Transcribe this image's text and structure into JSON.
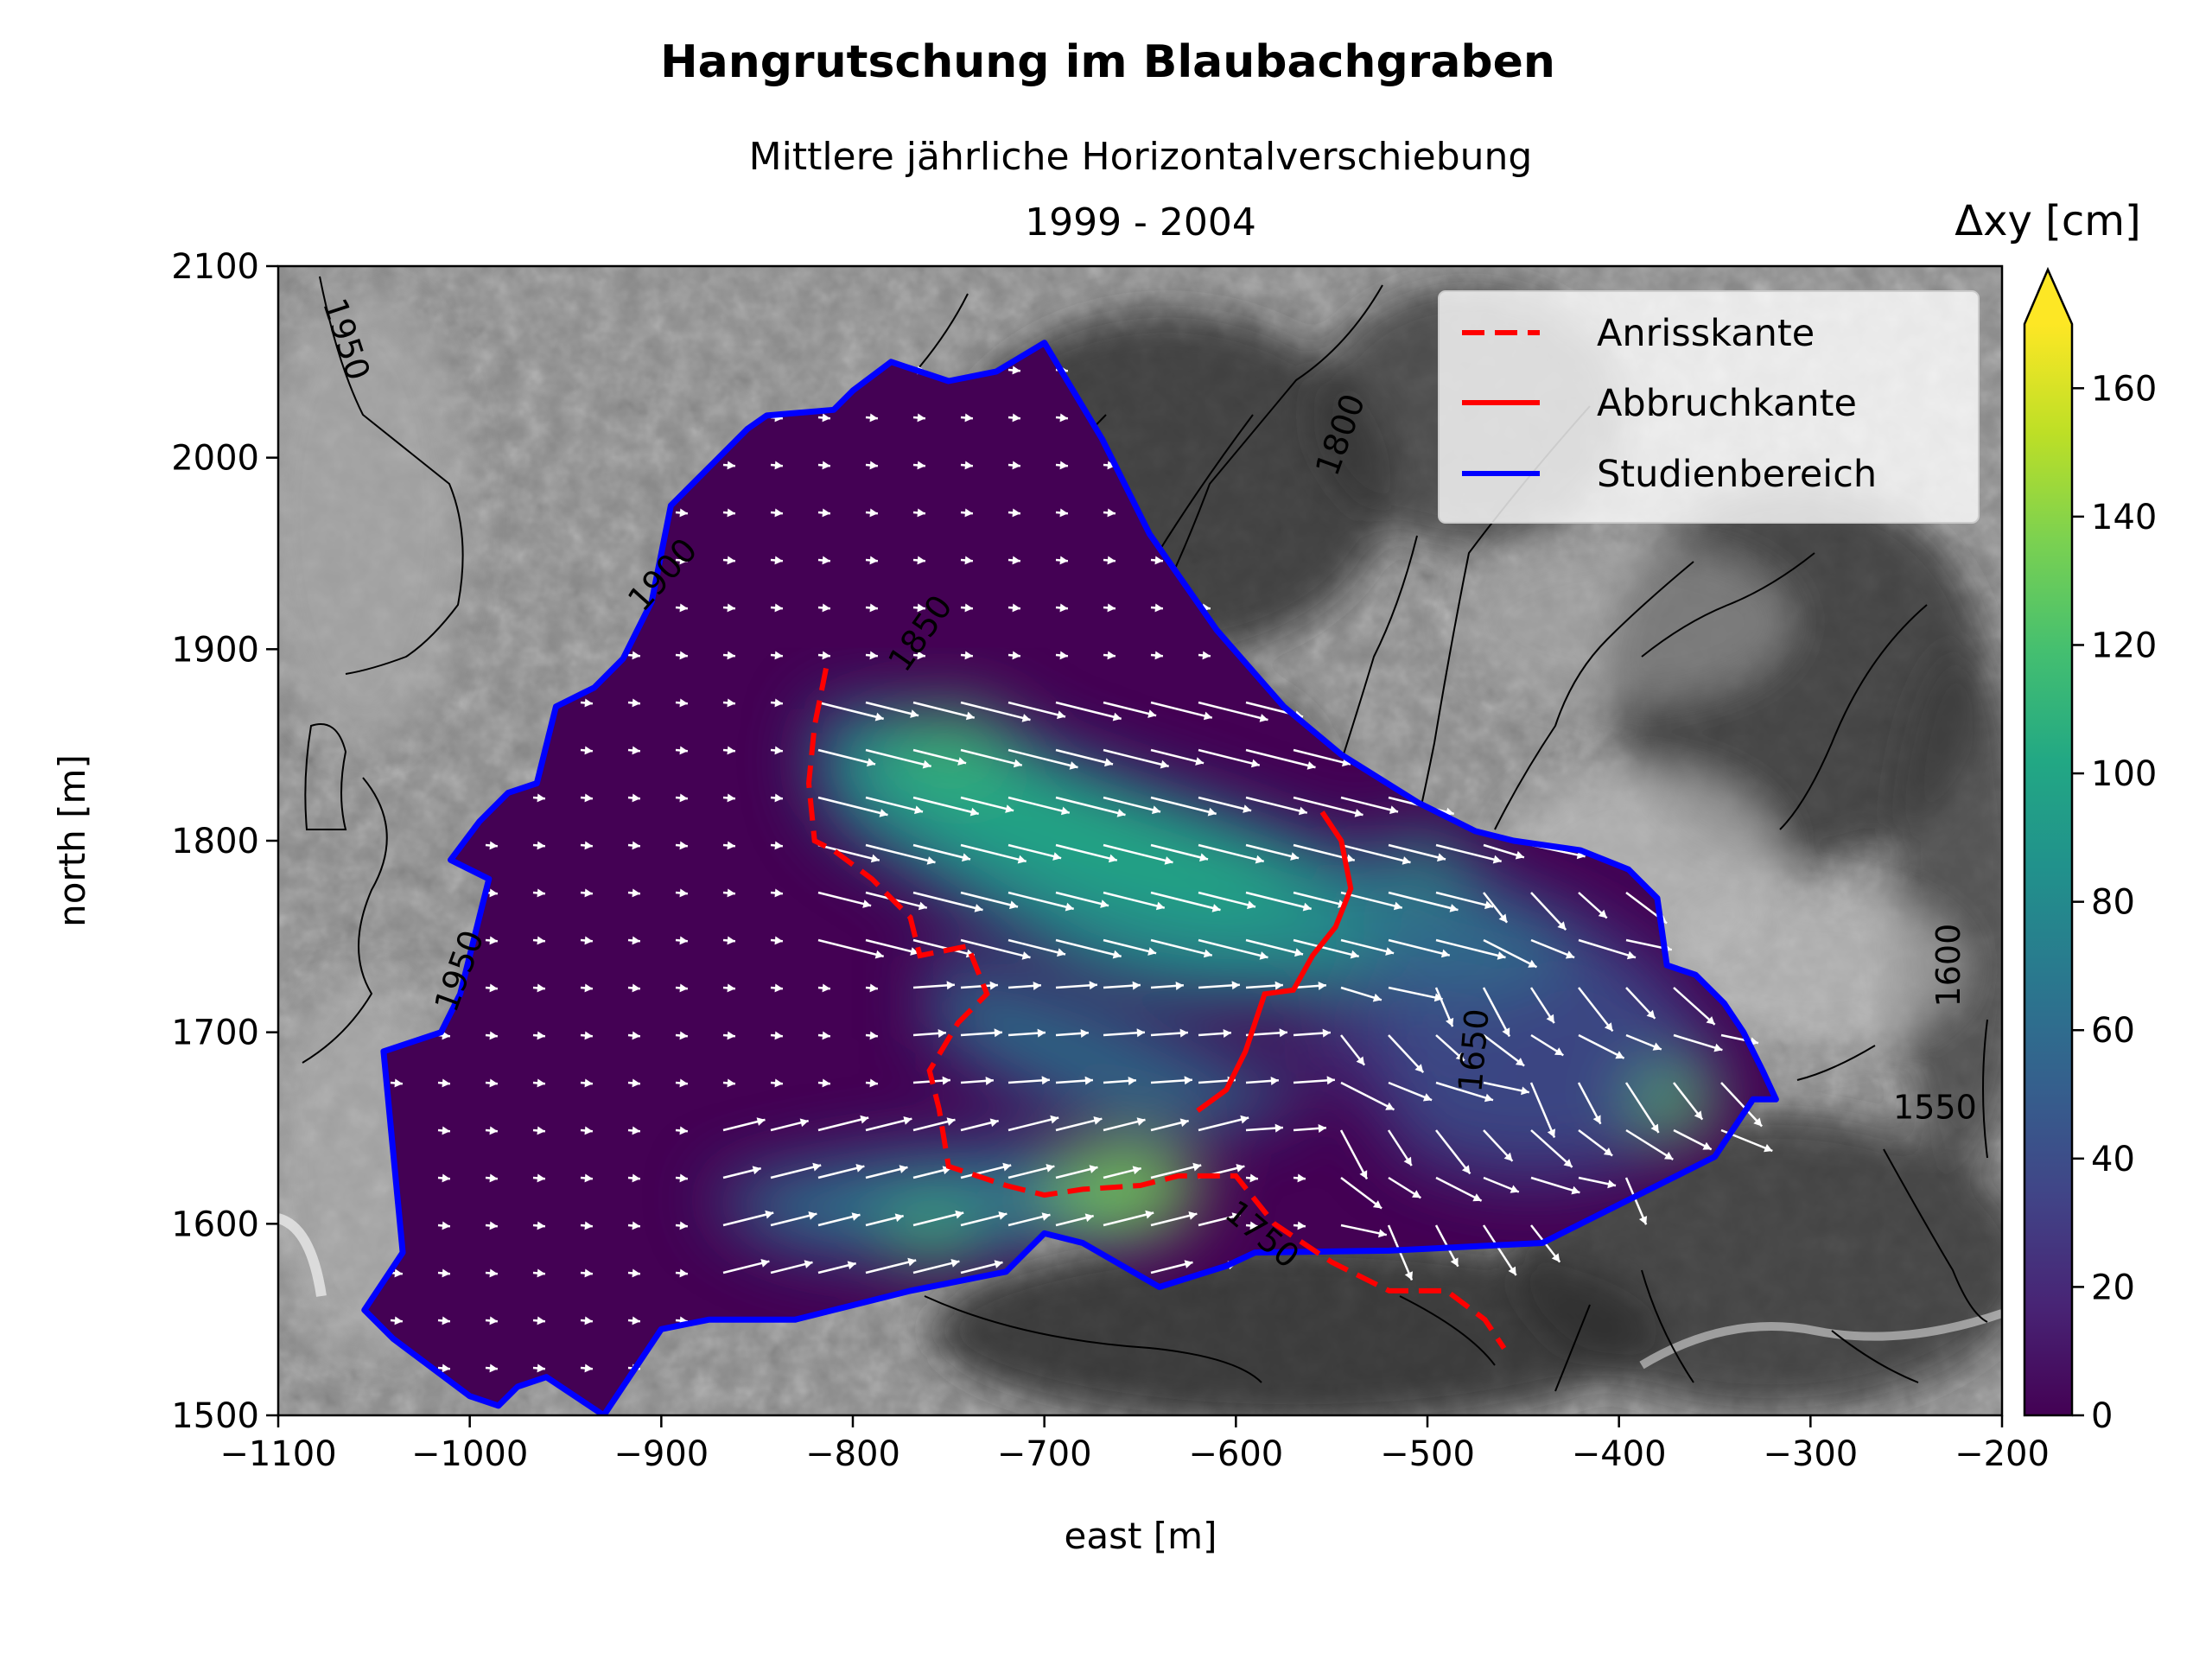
{
  "chart_data": {
    "type": "contour map with vector field",
    "title": "Hangrutschung im Blaubachgraben",
    "subtitle": "Mittlere jährliche Horizontalverschiebung",
    "subtitle2": "1999 - 2004",
    "xlabel": "east [m]",
    "ylabel": "north [m]",
    "xlim": [
      -1100,
      -200
    ],
    "ylim": [
      1500,
      2100
    ],
    "xticks": [
      -1100,
      -1000,
      -900,
      -800,
      -700,
      -600,
      -500,
      -400,
      -300,
      -200
    ],
    "xtick_labels": [
      "−1100",
      "−1000",
      "−900",
      "−800",
      "−700",
      "−600",
      "−500",
      "−400",
      "−300",
      "−200"
    ],
    "yticks": [
      1500,
      1600,
      1700,
      1800,
      1900,
      2000,
      2100
    ],
    "ytick_labels": [
      "1500",
      "1600",
      "1700",
      "1800",
      "1900",
      "2000",
      "2100"
    ],
    "colorbar": {
      "label": "Δxy [cm]",
      "range": [
        0,
        170
      ],
      "extend": "max",
      "ticks": [
        0,
        20,
        40,
        60,
        80,
        100,
        120,
        140,
        160
      ],
      "tick_labels": [
        "0",
        "20",
        "40",
        "60",
        "80",
        "100",
        "120",
        "140",
        "160"
      ],
      "colormap": "viridis",
      "levels": 17
    },
    "legend": {
      "position": "upper right",
      "entries": [
        {
          "label": "Anrisskante",
          "color": "#ff0000",
          "style": "dashed"
        },
        {
          "label": "Abbruchkante",
          "color": "#ff0000",
          "style": "solid"
        },
        {
          "label": "Studienbereich",
          "color": "#0000ff",
          "style": "solid"
        }
      ]
    },
    "study_area": [
      [
        -1055,
        1555
      ],
      [
        -1035,
        1585
      ],
      [
        -1045,
        1690
      ],
      [
        -1015,
        1700
      ],
      [
        -1005,
        1720
      ],
      [
        -990,
        1780
      ],
      [
        -1010,
        1790
      ],
      [
        -995,
        1810
      ],
      [
        -980,
        1825
      ],
      [
        -965,
        1830
      ],
      [
        -955,
        1870
      ],
      [
        -935,
        1880
      ],
      [
        -920,
        1895
      ],
      [
        -905,
        1925
      ],
      [
        -895,
        1975
      ],
      [
        -870,
        2000
      ],
      [
        -855,
        2015
      ],
      [
        -845,
        2022
      ],
      [
        -810,
        2025
      ],
      [
        -800,
        2035
      ],
      [
        -780,
        2050
      ],
      [
        -750,
        2040
      ],
      [
        -725,
        2045
      ],
      [
        -700,
        2060
      ],
      [
        -670,
        2010
      ],
      [
        -645,
        1960
      ],
      [
        -610,
        1910
      ],
      [
        -575,
        1870
      ],
      [
        -545,
        1845
      ],
      [
        -505,
        1820
      ],
      [
        -475,
        1805
      ],
      [
        -455,
        1800
      ],
      [
        -420,
        1795
      ],
      [
        -395,
        1785
      ],
      [
        -380,
        1770
      ],
      [
        -375,
        1735
      ],
      [
        -360,
        1730
      ],
      [
        -345,
        1715
      ],
      [
        -335,
        1700
      ],
      [
        -325,
        1680
      ],
      [
        -318,
        1665
      ],
      [
        -330,
        1665
      ],
      [
        -340,
        1650
      ],
      [
        -350,
        1635
      ],
      [
        -390,
        1615
      ],
      [
        -430,
        1595
      ],
      [
        -440,
        1590
      ],
      [
        -520,
        1586
      ],
      [
        -590,
        1585
      ],
      [
        -605,
        1578
      ],
      [
        -640,
        1567
      ],
      [
        -680,
        1590
      ],
      [
        -700,
        1595
      ],
      [
        -720,
        1575
      ],
      [
        -770,
        1565
      ],
      [
        -830,
        1550
      ],
      [
        -875,
        1550
      ],
      [
        -900,
        1545
      ],
      [
        -930,
        1500
      ],
      [
        -960,
        1520
      ],
      [
        -975,
        1515
      ],
      [
        -985,
        1505
      ],
      [
        -1000,
        1510
      ],
      [
        -1040,
        1540
      ]
    ],
    "anrisskante": [
      [
        -814,
        1890
      ],
      [
        -820,
        1860
      ],
      [
        -823,
        1830
      ],
      [
        -820,
        1800
      ],
      [
        -810,
        1795
      ],
      [
        -790,
        1780
      ],
      [
        -770,
        1760
      ],
      [
        -765,
        1740
      ],
      [
        -740,
        1745
      ],
      [
        -730,
        1720
      ],
      [
        -745,
        1705
      ],
      [
        -760,
        1680
      ],
      [
        -755,
        1660
      ],
      [
        -750,
        1630
      ],
      [
        -720,
        1620
      ],
      [
        -700,
        1615
      ],
      [
        -680,
        1618
      ],
      [
        -650,
        1620
      ],
      [
        -630,
        1625
      ],
      [
        -600,
        1625
      ],
      [
        -580,
        1600
      ],
      [
        -550,
        1580
      ],
      [
        -520,
        1565
      ],
      [
        -490,
        1565
      ],
      [
        -470,
        1550
      ],
      [
        -460,
        1535
      ]
    ],
    "abbruchkante": [
      [
        -620,
        1659
      ],
      [
        -605,
        1670
      ],
      [
        -595,
        1690
      ],
      [
        -585,
        1720
      ],
      [
        -570,
        1722
      ],
      [
        -560,
        1740
      ],
      [
        -548,
        1755
      ],
      [
        -540,
        1775
      ],
      [
        -545,
        1800
      ],
      [
        -555,
        1815
      ]
    ],
    "contour_labels": [
      {
        "text": "1950",
        "x": -1070,
        "y": 2060,
        "angle": 72
      },
      {
        "text": "1950",
        "x": -1000,
        "y": 1730,
        "angle": -70
      },
      {
        "text": "1900",
        "x": -895,
        "y": 1935,
        "angle": -48
      },
      {
        "text": "1850",
        "x": -760,
        "y": 1905,
        "angle": -55
      },
      {
        "text": "1800",
        "x": -540,
        "y": 2010,
        "angle": -70
      },
      {
        "text": "1750",
        "x": -590,
        "y": 1590,
        "angle": 40
      },
      {
        "text": "1650",
        "x": -470,
        "y": 1690,
        "angle": -85
      },
      {
        "text": "1600",
        "x": -222,
        "y": 1735,
        "angle": -90
      },
      {
        "text": "1550",
        "x": -235,
        "y": 1655,
        "angle": 0
      }
    ]
  }
}
